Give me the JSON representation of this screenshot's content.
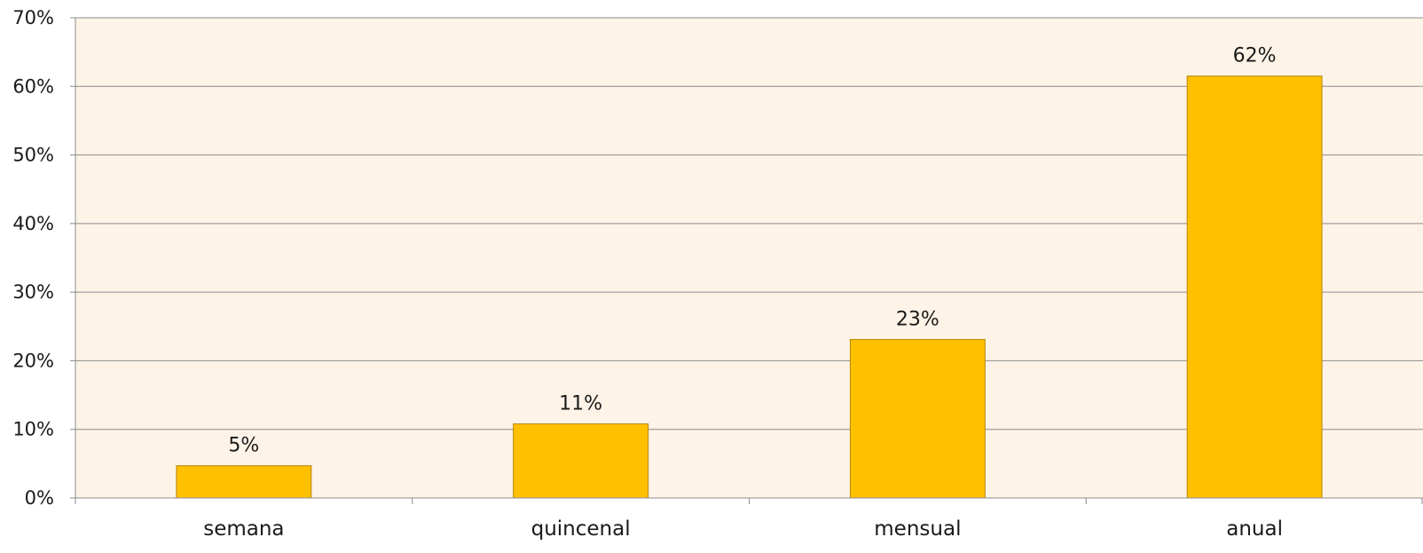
{
  "chart_data": {
    "type": "bar",
    "title": "",
    "xlabel": "",
    "ylabel": "",
    "categories": [
      "semana",
      "quincenal",
      "mensual",
      "anual"
    ],
    "values": [
      4.7,
      10.8,
      23.1,
      61.5
    ],
    "data_labels": [
      "5%",
      "11%",
      "23%",
      "62%"
    ],
    "ylim": [
      0,
      70
    ],
    "y_ticks": [
      0,
      10,
      20,
      30,
      40,
      50,
      60,
      70
    ],
    "y_tick_labels": [
      "0%",
      "10%",
      "20%",
      "30%",
      "40%",
      "50%",
      "60%",
      "70%"
    ],
    "grid": true,
    "legend": "none",
    "colors": {
      "bar_fill": "#FFC000",
      "bar_stroke": "#B8860B",
      "plot_background": "#FDF3E7",
      "gridline": "#8C8C8C",
      "axis": "#8C8C8C"
    }
  }
}
